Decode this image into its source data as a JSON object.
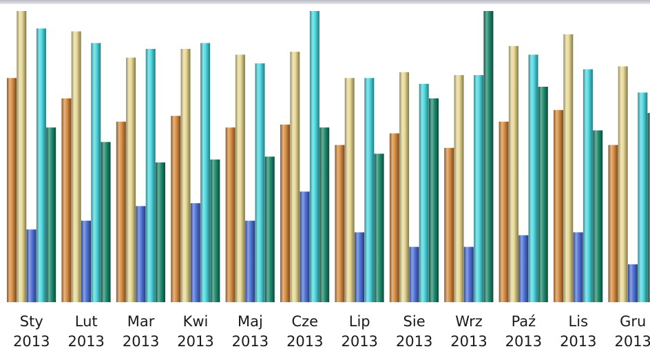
{
  "chart_data": {
    "type": "bar",
    "title": "",
    "xlabel": "",
    "ylabel": "",
    "ylim": [
      0,
      100
    ],
    "grid": false,
    "legend": "none",
    "categories": [
      {
        "month": "Sty",
        "year": "2013"
      },
      {
        "month": "Lut",
        "year": "2013"
      },
      {
        "month": "Mar",
        "year": "2013"
      },
      {
        "month": "Kwi",
        "year": "2013"
      },
      {
        "month": "Maj",
        "year": "2013"
      },
      {
        "month": "Cze",
        "year": "2013"
      },
      {
        "month": "Lip",
        "year": "2013"
      },
      {
        "month": "Sie",
        "year": "2013"
      },
      {
        "month": "Wrz",
        "year": "2013"
      },
      {
        "month": "Paź",
        "year": "2013"
      },
      {
        "month": "Lis",
        "year": "2013"
      },
      {
        "month": "Gru",
        "year": "2013"
      }
    ],
    "series": [
      {
        "color": "#d88a3c",
        "values": [
          77,
          70,
          62,
          64,
          60,
          61,
          54,
          58,
          53,
          62,
          66,
          54
        ]
      },
      {
        "color": "#e8d890",
        "values": [
          100,
          93,
          84,
          87,
          85,
          86,
          77,
          79,
          78,
          88,
          92,
          81
        ]
      },
      {
        "color": "#4a6fd8",
        "values": [
          25,
          28,
          33,
          34,
          28,
          38,
          24,
          19,
          19,
          23,
          24,
          13
        ]
      },
      {
        "color": "#48d8e0",
        "values": [
          94,
          89,
          87,
          89,
          82,
          100,
          77,
          75,
          78,
          85,
          80,
          72
        ]
      },
      {
        "color": "#17876a",
        "values": [
          60,
          55,
          48,
          49,
          50,
          60,
          51,
          70,
          100,
          74,
          59,
          65
        ]
      }
    ]
  }
}
